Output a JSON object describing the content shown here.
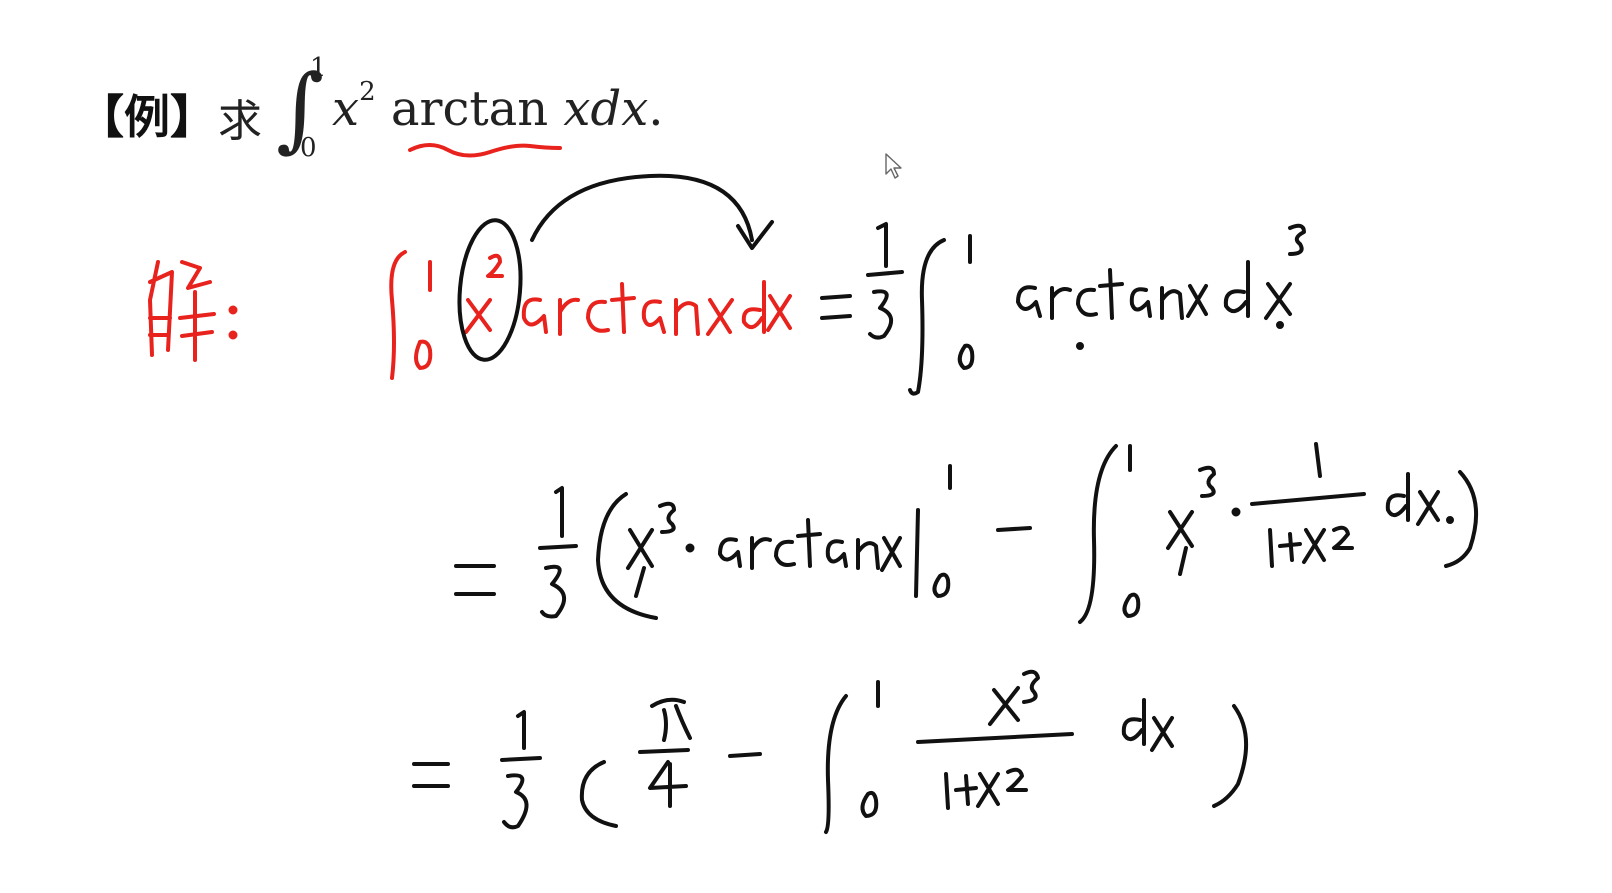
{
  "problem": {
    "tag": "【例】",
    "verb": "求",
    "integral_sign": "∫",
    "upper_limit": "1",
    "lower_limit": "0",
    "integrand": "x² arctan xdx."
  },
  "handwriting": {
    "solution_label": "解:",
    "step1_left": "∫₀¹ x² arctan x dx",
    "step1_right": "= 1/3 ∫₀¹ arctan x d x³",
    "step2": "= 1/3 ( x³ · arctan x |₀¹ − ∫₀¹ x³ · 1/(1+x²) dx )",
    "step3": "= 1/3 ( π/4 − ∫₀¹ x³/(1+x²) dx )"
  },
  "colors": {
    "ink_red": "#e8231e",
    "ink_black": "#111111",
    "print_text": "#222222"
  },
  "icons": {
    "cursor": "mouse-pointer-icon"
  }
}
